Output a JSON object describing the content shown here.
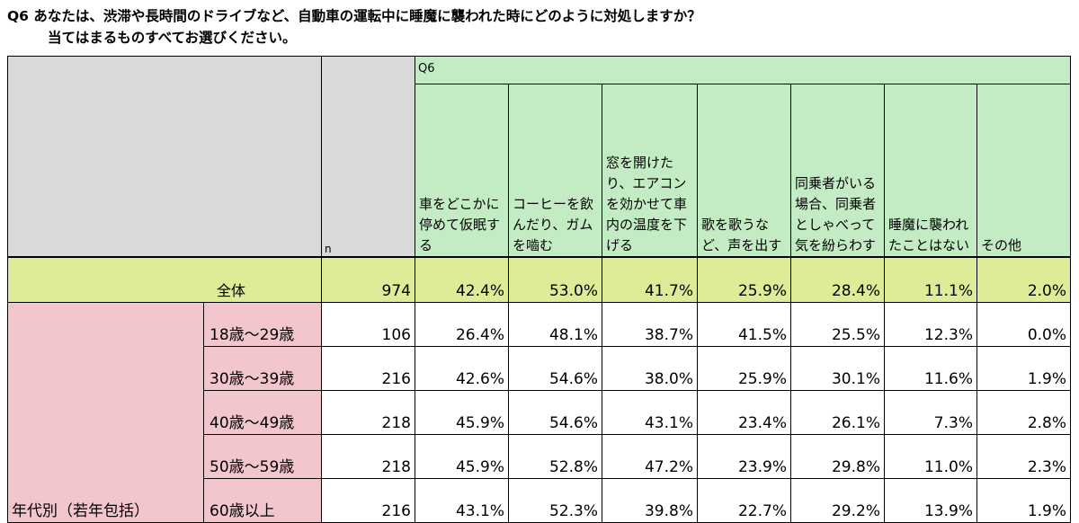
{
  "title": {
    "line1": "Q6 あなたは、渋滞や長時間のドライブなど、自動車の運転中に睡魔に襲われた時にどのように対処しますか？",
    "line2": "当てはまるものすべてお選びください。"
  },
  "table": {
    "question_label": "Q6",
    "n_label": "n",
    "columns": [
      "車をどこかに停めて仮眠する",
      "コーヒーを飲んだり、ガムを嚙む",
      "窓を開けたり、エアコンを効かせて車内の温度を下げる",
      "歌を歌うなど、声を出す",
      "同乗者がいる場合、同乗者としゃべって気を紛らわす",
      "睡魔に襲われたことはない",
      "その他"
    ],
    "total": {
      "label": "全体",
      "n": "974",
      "values": [
        "42.4%",
        "53.0%",
        "41.7%",
        "25.9%",
        "28.4%",
        "11.1%",
        "2.0%"
      ]
    },
    "group_label": "年代別（若年包括）",
    "rows": [
      {
        "label": "18歳～29歳",
        "n": "106",
        "values": [
          "26.4%",
          "48.1%",
          "38.7%",
          "41.5%",
          "25.5%",
          "12.3%",
          "0.0%"
        ]
      },
      {
        "label": "30歳～39歳",
        "n": "216",
        "values": [
          "42.6%",
          "54.6%",
          "38.0%",
          "25.9%",
          "30.1%",
          "11.6%",
          "1.9%"
        ]
      },
      {
        "label": "40歳～49歳",
        "n": "218",
        "values": [
          "45.9%",
          "54.6%",
          "43.1%",
          "23.4%",
          "26.1%",
          "7.3%",
          "2.8%"
        ]
      },
      {
        "label": "50歳～59歳",
        "n": "218",
        "values": [
          "45.9%",
          "52.8%",
          "47.2%",
          "23.9%",
          "29.8%",
          "11.0%",
          "2.3%"
        ]
      },
      {
        "label": "60歳以上",
        "n": "216",
        "values": [
          "43.1%",
          "52.3%",
          "39.8%",
          "22.7%",
          "29.2%",
          "13.9%",
          "1.9%"
        ]
      }
    ]
  }
}
